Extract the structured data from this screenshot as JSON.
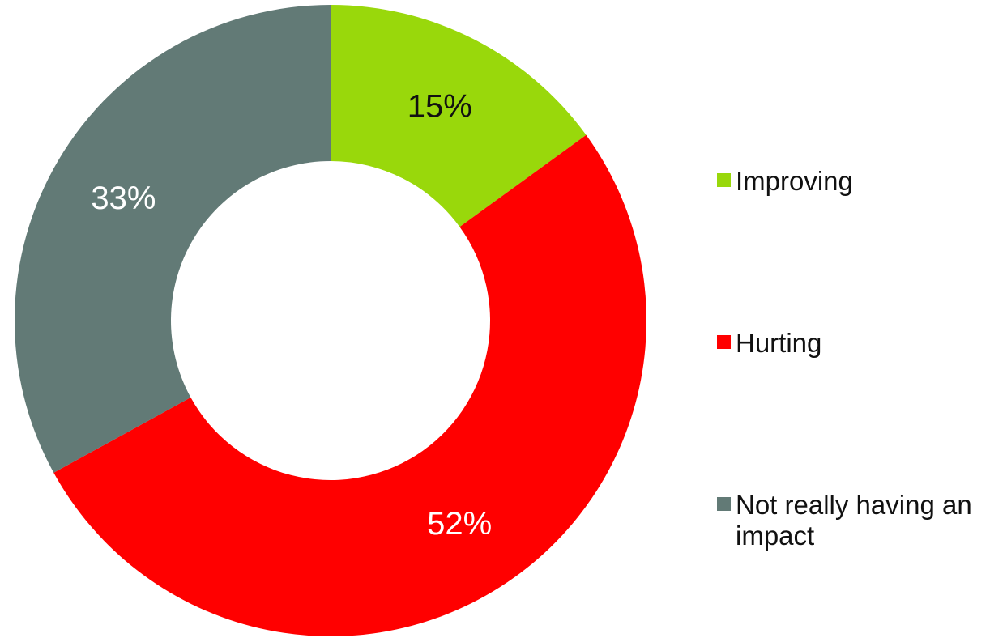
{
  "chart_data": {
    "type": "pie",
    "variant": "donut",
    "categories": [
      "Improving",
      "Hurting",
      "Not really having an impact"
    ],
    "values": [
      15,
      52,
      33
    ],
    "labels": [
      "15%",
      "52%",
      "33%"
    ],
    "colors": [
      "#99d80b",
      "#ff0000",
      "#627a76"
    ],
    "label_colors": [
      "#111111",
      "#ffffff",
      "#ffffff"
    ],
    "start_angle_deg": 0,
    "direction": "clockwise",
    "legend_position": "right"
  }
}
